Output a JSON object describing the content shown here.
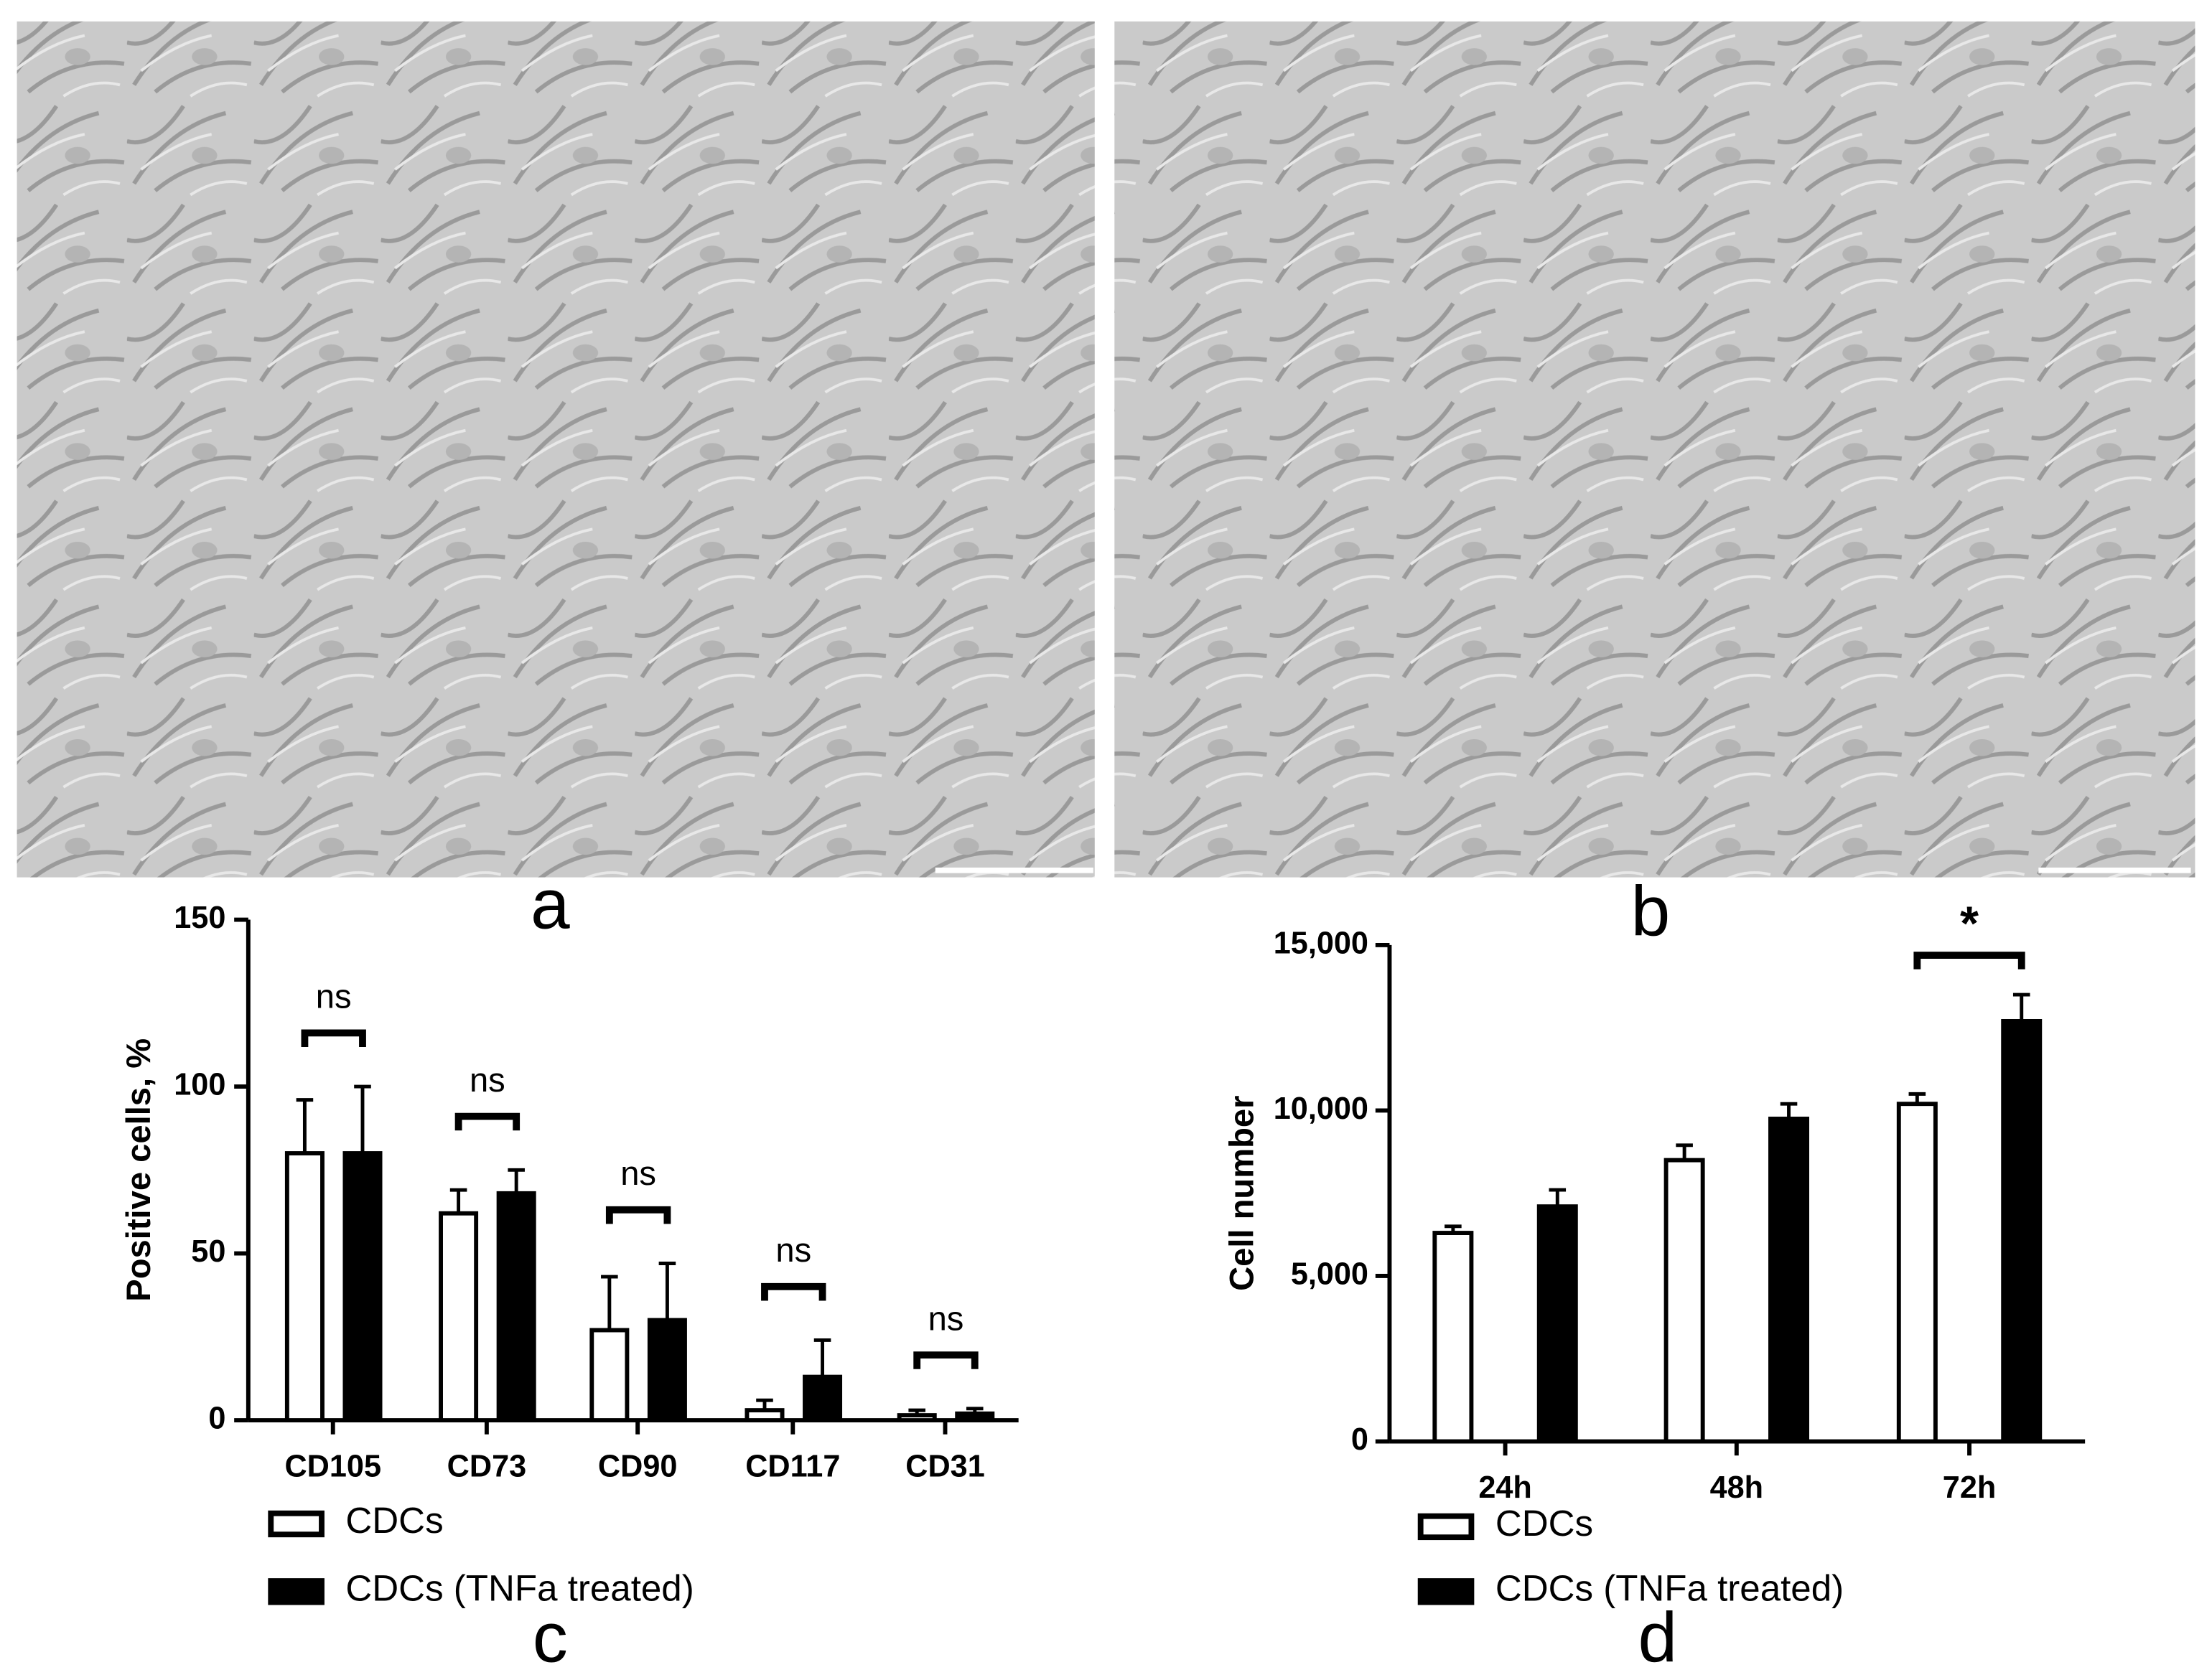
{
  "panel_labels": [
    "a",
    "b",
    "c",
    "d"
  ],
  "chart_data": [
    {
      "type": "bar",
      "ylabel": "Positive cells, %",
      "categories": [
        "CD105",
        "CD73",
        "CD90",
        "CD117",
        "CD31"
      ],
      "series": [
        {
          "name": "CDCs",
          "color": "#ffffff",
          "values": [
            80,
            62,
            27,
            3,
            1.5
          ],
          "errors": [
            16,
            7,
            16,
            3,
            1.5
          ]
        },
        {
          "name": "CDCs (TNFa treated)",
          "color": "#000000",
          "values": [
            80,
            68,
            30,
            13,
            2
          ],
          "errors": [
            20,
            7,
            17,
            11,
            1.5
          ]
        }
      ],
      "annotations": [
        "ns",
        "ns",
        "ns",
        "ns",
        "ns"
      ],
      "ylim": [
        0,
        150
      ],
      "yticks": [
        0,
        50,
        100,
        150
      ]
    },
    {
      "type": "bar",
      "ylabel": "Cell number",
      "categories": [
        "24h",
        "48h",
        "72h"
      ],
      "series": [
        {
          "name": "CDCs",
          "color": "#ffffff",
          "values": [
            6300,
            8500,
            10200
          ],
          "errors": [
            200,
            450,
            300
          ]
        },
        {
          "name": "CDCs (TNFa treated)",
          "color": "#000000",
          "values": [
            7100,
            9750,
            12700
          ],
          "errors": [
            500,
            450,
            800
          ]
        }
      ],
      "annotations": [
        null,
        null,
        "*"
      ],
      "ylim": [
        0,
        15000
      ],
      "yticks": [
        0,
        {
          "value": 5000,
          "label": "5,000"
        },
        {
          "value": 10000,
          "label": "10,000"
        },
        {
          "value": 15000,
          "label": "15,000"
        }
      ]
    }
  ]
}
